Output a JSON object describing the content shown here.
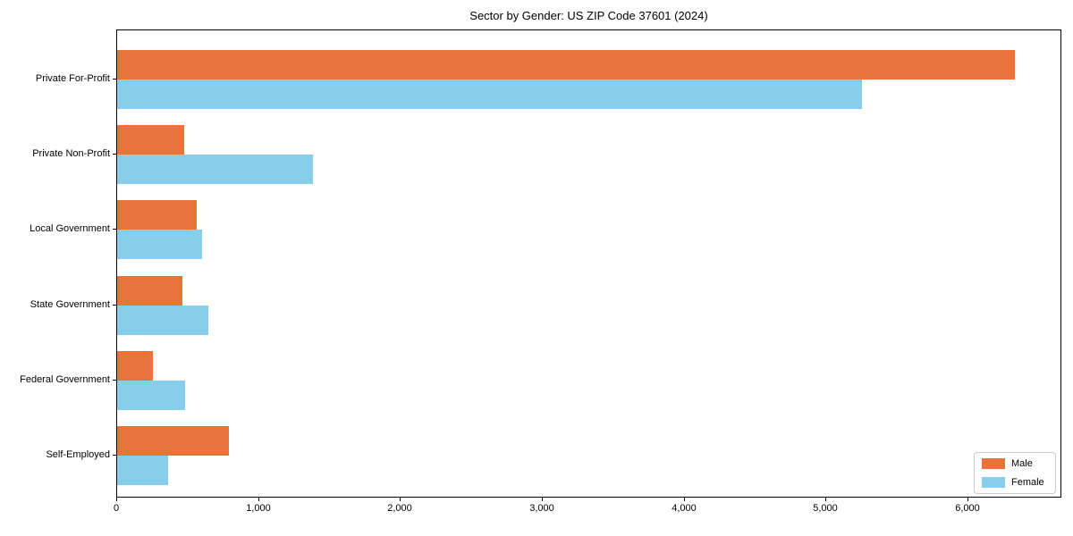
{
  "chart_data": {
    "type": "bar",
    "orientation": "horizontal",
    "title": "Sector by Gender: US ZIP Code 37601 (2024)",
    "categories": [
      "Private For-Profit",
      "Private Non-Profit",
      "Local Government",
      "State Government",
      "Federal Government",
      "Self-Employed"
    ],
    "series": [
      {
        "name": "Male",
        "color": "#e8743c",
        "values": [
          6330,
          470,
          560,
          460,
          250,
          790
        ]
      },
      {
        "name": "Female",
        "color": "#87ceeb",
        "values": [
          5250,
          1380,
          600,
          640,
          480,
          360
        ]
      }
    ],
    "xlabel": "",
    "ylabel": "",
    "xlim": [
      0,
      6650
    ],
    "xticks": [
      0,
      1000,
      2000,
      3000,
      4000,
      5000,
      6000
    ],
    "xtick_labels": [
      "0",
      "1,000",
      "2,000",
      "3,000",
      "4,000",
      "5,000",
      "6,000"
    ],
    "grid": false,
    "legend": {
      "position": "lower right",
      "entries": [
        {
          "label": "Male",
          "color": "#e8743c"
        },
        {
          "label": "Female",
          "color": "#87ceeb"
        }
      ]
    }
  }
}
